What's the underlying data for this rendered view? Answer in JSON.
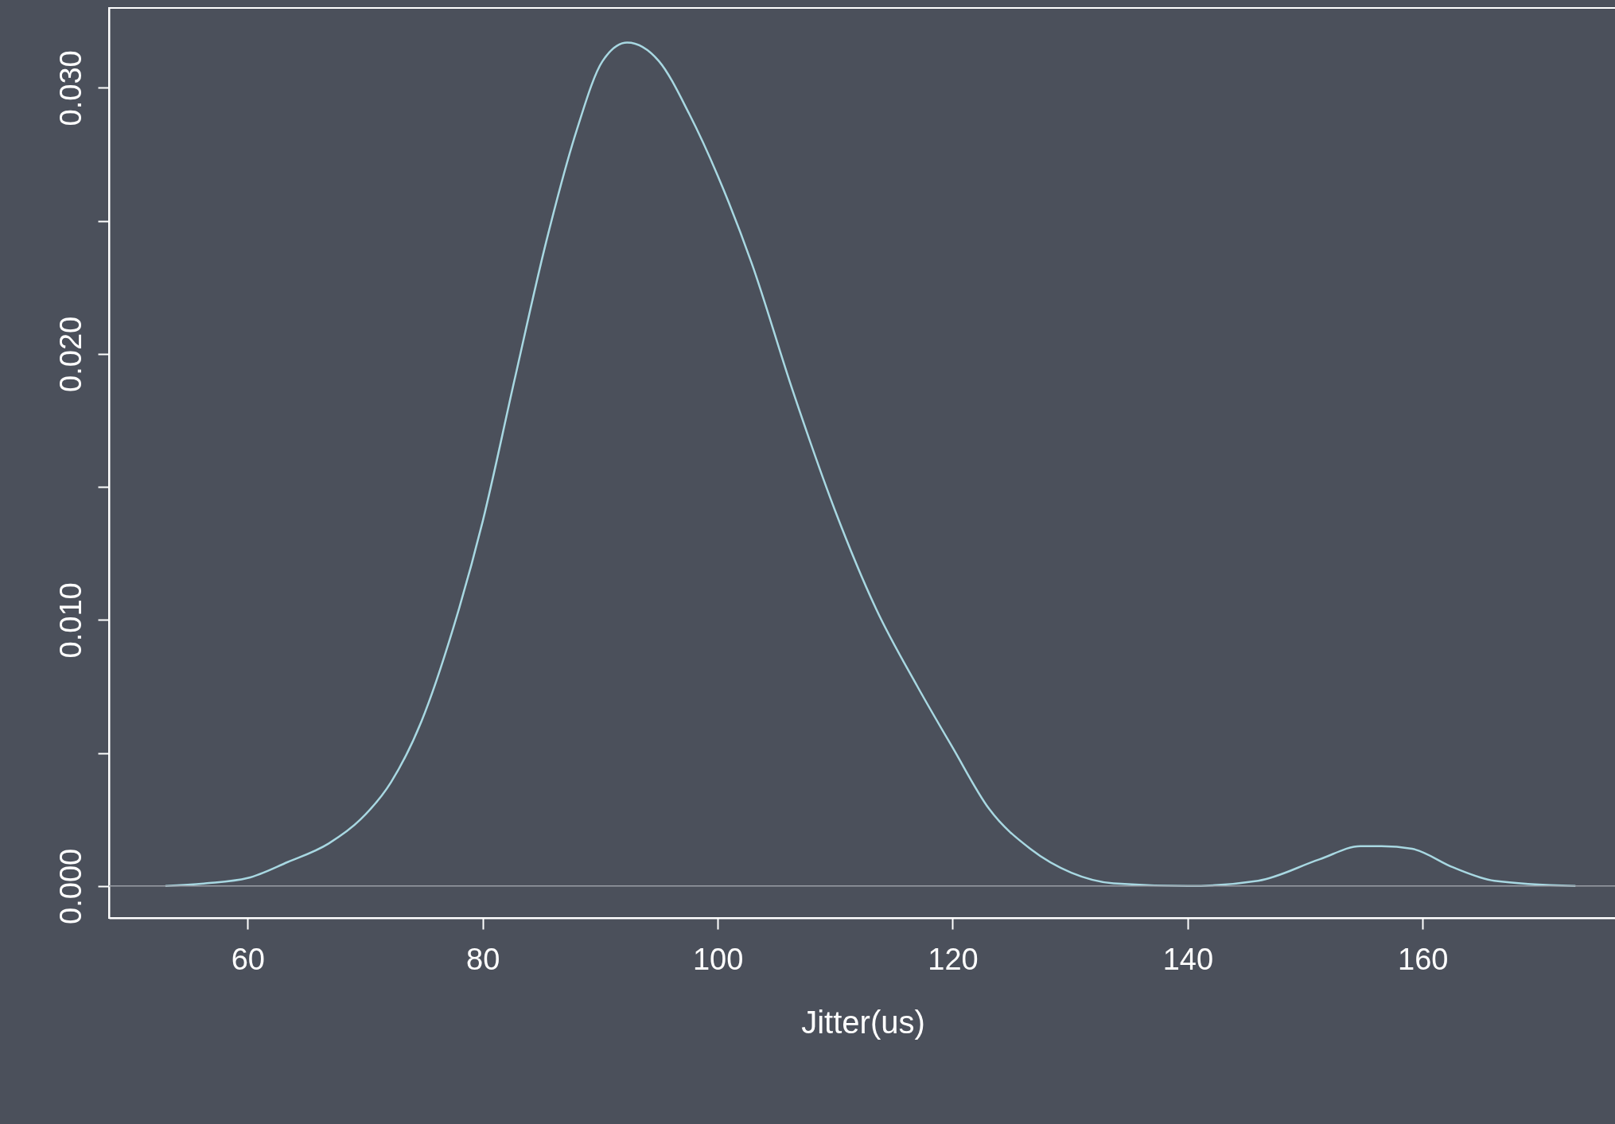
{
  "chart_data": {
    "type": "line",
    "xlabel": "Jitter(us)",
    "x": [
      53,
      56.4,
      60,
      63.4,
      66.9,
      69.6,
      72.2,
      74.8,
      77.5,
      80,
      82.7,
      85.4,
      88,
      90.2,
      92.3,
      95,
      97.6,
      100,
      102.9,
      106.4,
      110,
      113.5,
      117,
      120,
      123.1,
      126.6,
      130.1,
      133.7,
      140,
      146,
      151.2,
      154.7,
      156.5,
      159.1,
      162.6,
      166.1,
      173
    ],
    "series": [
      {
        "color": "#a8d8e2",
        "values": [
          0,
          0.0001,
          0.0003,
          0.0009,
          0.0016,
          0.0025,
          0.0039,
          0.0062,
          0.0097,
          0.0137,
          0.019,
          0.0242,
          0.0284,
          0.031,
          0.0317,
          0.031,
          0.029,
          0.0267,
          0.0234,
          0.0186,
          0.0141,
          0.0104,
          0.0075,
          0.0052,
          0.0029,
          0.0014,
          0.0005,
          0.0001,
          0,
          0.0002,
          0.001,
          0.0015,
          0.0015,
          0.0014,
          0.0007,
          0.0002,
          0
        ]
      }
    ],
    "xlim": [
      48.2,
      176.5
    ],
    "ylim": [
      -0.0012,
      0.033
    ],
    "xticks": [
      60,
      80,
      100,
      120,
      140,
      160
    ],
    "yticks": [
      {
        "value": 0,
        "label": "0.000"
      },
      {
        "value": 0.005,
        "label": null
      },
      {
        "value": 0.01,
        "label": "0.010"
      },
      {
        "value": 0.015,
        "label": null
      },
      {
        "value": 0.02,
        "label": "0.020"
      },
      {
        "value": 0.025,
        "label": null
      },
      {
        "value": 0.03,
        "label": "0.030"
      }
    ],
    "ref_lines": [
      {
        "axis": "y",
        "value": 0,
        "color": "#9a9ea6"
      }
    ],
    "grid": false,
    "line_style": "solid",
    "marker": "none"
  }
}
